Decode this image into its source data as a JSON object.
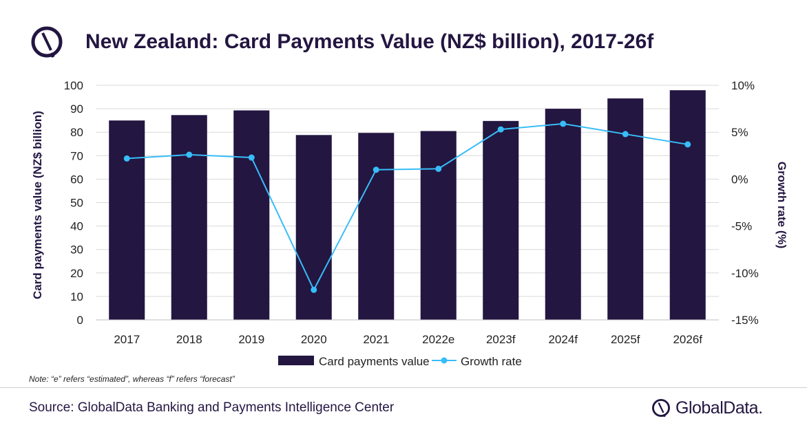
{
  "header": {
    "title": "New Zealand: Card Payments Value (NZ$ billion), 2017-26f"
  },
  "chart_data": {
    "type": "bar",
    "title": "New Zealand: Card Payments Value (NZ$ billion), 2017-26f",
    "categories": [
      "2017",
      "2018",
      "2019",
      "2020",
      "2021",
      "2022e",
      "2023f",
      "2024f",
      "2025f",
      "2026f"
    ],
    "series": [
      {
        "name": "Card payments value",
        "type": "bar",
        "axis": "left",
        "values": [
          85.0,
          87.3,
          89.3,
          78.8,
          79.7,
          80.5,
          84.8,
          90.0,
          94.4,
          97.9
        ]
      },
      {
        "name": "Growth rate",
        "type": "line",
        "axis": "right",
        "values": [
          2.2,
          2.6,
          2.3,
          -11.8,
          1.0,
          1.1,
          5.3,
          5.9,
          4.8,
          3.7
        ]
      }
    ],
    "ylabel": "Card payments value (NZ$ billion)",
    "ylabel_right": "Growth rate (%)",
    "ylim": [
      0,
      100
    ],
    "yticks": [
      "0",
      "10",
      "20",
      "30",
      "40",
      "50",
      "60",
      "70",
      "80",
      "90",
      "100"
    ],
    "ylim_right": [
      -15,
      10
    ],
    "yticks_right": [
      "-15%",
      "-10%",
      "-5%",
      "0%",
      "5%",
      "10%"
    ],
    "grid": true,
    "legend_position": "bottom",
    "colors": {
      "bar": "#231641",
      "line": "#38bdf8",
      "grid": "#d9d9d9",
      "title": "#231641"
    }
  },
  "footer": {
    "note": "Note: “e” refers “estimated”, whereas “f” refers “forecast”",
    "source": "Source: GlobalData Banking and Payments Intelligence Center",
    "brand": "GlobalData."
  }
}
